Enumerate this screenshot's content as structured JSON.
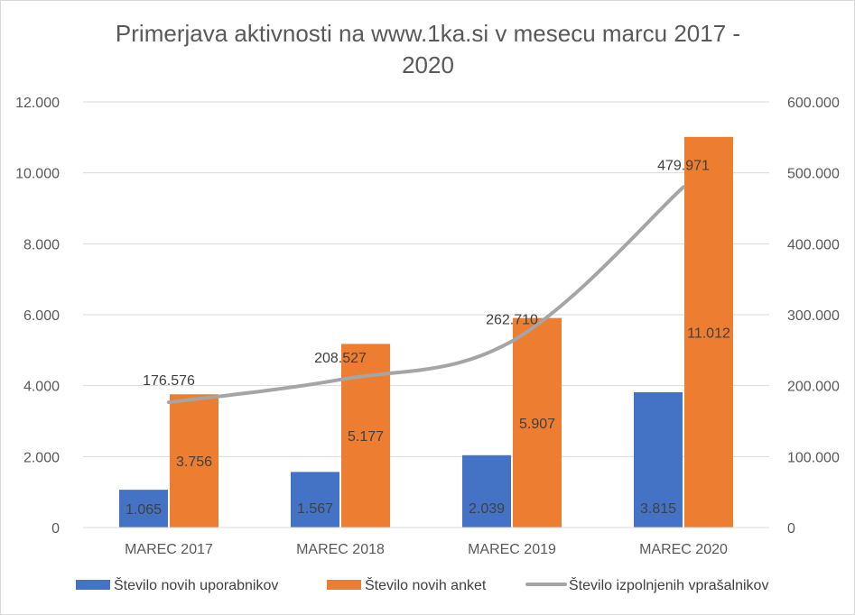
{
  "chart_data": {
    "type": "bar",
    "title": "Primerjava aktivnosti na www.1ka.si v mesecu marcu 2017 - 2020",
    "title_lines": [
      "Primerjava aktivnosti na www.1ka.si v mesecu marcu 2017 -",
      "2020"
    ],
    "categories": [
      "MAREC 2017",
      "MAREC 2018",
      "MAREC 2019",
      "MAREC 2020"
    ],
    "series": [
      {
        "name": "Število novih uporabnikov",
        "kind": "bar",
        "axis": "left",
        "color": "#4472c4",
        "values": [
          1065,
          1567,
          2039,
          3815
        ],
        "labels": [
          "1.065",
          "1.567",
          "2.039",
          "3.815"
        ]
      },
      {
        "name": "Število novih anket",
        "kind": "bar",
        "axis": "left",
        "color": "#ed7d31",
        "values": [
          3756,
          5177,
          5907,
          11012
        ],
        "labels": [
          "3.756",
          "5.177",
          "5.907",
          "11.012"
        ]
      },
      {
        "name": "Število izpolnjenih vprašalnikov",
        "kind": "line",
        "axis": "right",
        "color": "#a5a5a5",
        "values": [
          176576,
          208527,
          262710,
          479971
        ],
        "labels": [
          "176.576",
          "208.527",
          "262.710",
          "479.971"
        ]
      }
    ],
    "y_left": {
      "ylim": [
        0,
        12000
      ],
      "ticks": [
        0,
        2000,
        4000,
        6000,
        8000,
        10000,
        12000
      ],
      "tick_labels": [
        "0",
        "2.000",
        "4.000",
        "6.000",
        "8.000",
        "10.000",
        "12.000"
      ]
    },
    "y_right": {
      "ylim": [
        0,
        600000
      ],
      "ticks": [
        0,
        100000,
        200000,
        300000,
        400000,
        500000,
        600000
      ],
      "tick_labels": [
        "0",
        "100.000",
        "200.000",
        "300.000",
        "400.000",
        "500.000",
        "600.000"
      ]
    },
    "grid": true,
    "legend_position": "bottom"
  }
}
